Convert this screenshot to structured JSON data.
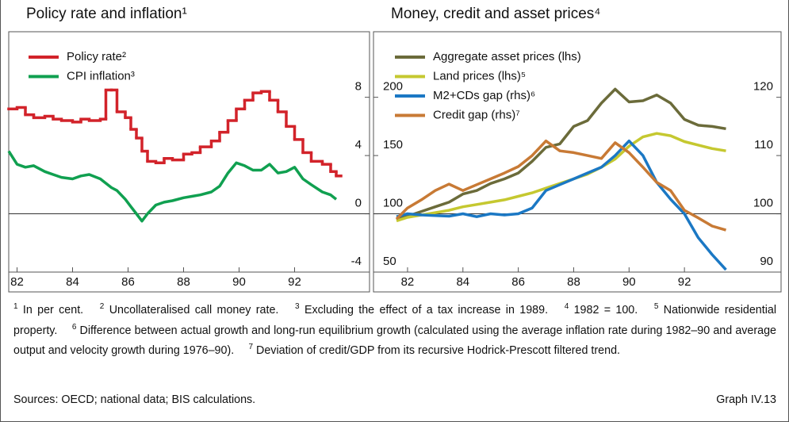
{
  "chart_data": [
    {
      "type": "line",
      "title": "Policy rate and inflation¹",
      "x": [
        1981.7,
        1982,
        1982.3,
        1982.6,
        1983,
        1983.3,
        1983.6,
        1984,
        1984.3,
        1984.6,
        1985,
        1985.2,
        1985.4,
        1985.6,
        1985.9,
        1986.1,
        1986.3,
        1986.5,
        1986.7,
        1987,
        1987.3,
        1987.6,
        1988,
        1988.3,
        1988.6,
        1989,
        1989.3,
        1989.6,
        1989.9,
        1990.2,
        1990.5,
        1990.8,
        1991.1,
        1991.4,
        1991.7,
        1992,
        1992.3,
        1992.6,
        1993,
        1993.3,
        1993.5
      ],
      "series": [
        {
          "name": "Policy rate²",
          "color": "#d2232a",
          "step": true,
          "values": [
            7.2,
            7.3,
            6.8,
            6.6,
            6.7,
            6.5,
            6.4,
            6.3,
            6.5,
            6.4,
            6.5,
            8.5,
            8.5,
            7.0,
            6.6,
            5.8,
            5.2,
            4.3,
            3.6,
            3.5,
            3.8,
            3.7,
            4.1,
            4.2,
            4.6,
            5.0,
            5.6,
            6.4,
            7.2,
            7.8,
            8.3,
            8.4,
            7.8,
            7.0,
            6.0,
            5.1,
            4.2,
            3.6,
            3.4,
            2.9,
            2.6
          ]
        },
        {
          "name": "CPI inflation³",
          "color": "#10a050",
          "values": [
            4.3,
            3.4,
            3.2,
            3.3,
            2.9,
            2.7,
            2.5,
            2.4,
            2.6,
            2.7,
            2.4,
            2.1,
            1.8,
            1.6,
            1.0,
            0.5,
            0.0,
            -0.5,
            0.0,
            0.6,
            0.8,
            0.9,
            1.1,
            1.2,
            1.3,
            1.5,
            1.9,
            2.8,
            3.5,
            3.3,
            3.0,
            3.0,
            3.4,
            2.8,
            2.9,
            3.2,
            2.4,
            2.0,
            1.5,
            1.3,
            1.0
          ]
        }
      ],
      "xlim": [
        1981.7,
        1994.7
      ],
      "xticks": [
        {
          "value": 1982,
          "label": "82"
        },
        {
          "value": 1984,
          "label": "84"
        },
        {
          "value": 1986,
          "label": "86"
        },
        {
          "value": 1988,
          "label": "88"
        },
        {
          "value": 1990,
          "label": "90"
        },
        {
          "value": 1992,
          "label": "92"
        }
      ],
      "ylim": [
        -4,
        12.5
      ],
      "yticks": [
        -4,
        0,
        4,
        8
      ],
      "yticks_side": "right",
      "reference_line": 0
    },
    {
      "type": "line",
      "title": "Money, credit and asset prices⁴",
      "x": [
        1981.6,
        1982,
        1982.5,
        1983,
        1983.5,
        1984,
        1984.5,
        1985,
        1985.5,
        1986,
        1986.5,
        1987,
        1987.5,
        1988,
        1988.5,
        1989,
        1989.5,
        1990,
        1990.5,
        1991,
        1991.5,
        1992,
        1992.5,
        1993,
        1993.5
      ],
      "series": [
        {
          "name": "Aggregate asset prices (lhs)",
          "color": "#6b6b3a",
          "values": [
            95,
            98,
            102,
            106,
            110,
            117,
            120,
            126,
            130,
            135,
            145,
            157,
            160,
            175,
            180,
            195,
            207,
            196,
            197,
            202,
            195,
            181,
            176,
            175,
            173
          ]
        },
        {
          "name": "Land prices (lhs)⁵",
          "color": "#c5c830",
          "values": [
            94,
            97,
            99,
            101,
            103,
            106,
            108,
            110,
            112,
            115,
            118,
            122,
            126,
            130,
            134,
            140,
            147,
            158,
            166,
            169,
            167,
            162,
            159,
            156,
            154
          ]
        },
        {
          "name": "M2+CDs gap (rhs)⁶",
          "color": "#1b78c4",
          "axis": "y2",
          "values": [
            99.5,
            100,
            99.8,
            99.7,
            99.6,
            100,
            99.5,
            100,
            99.8,
            100,
            101,
            104,
            105,
            106,
            107,
            108,
            110,
            112.5,
            110,
            105.4,
            102.5,
            100,
            95.9,
            93,
            90.4
          ]
        },
        {
          "name": "Credit gap (rhs)⁷",
          "color": "#c87a35",
          "axis": "y2",
          "values": [
            99.1,
            101,
            102.4,
            104,
            105.1,
            104,
            105,
            106,
            107,
            108.1,
            110,
            112.5,
            110.8,
            110.5,
            110,
            109.5,
            112.2,
            110.5,
            108,
            105.4,
            104,
            100.6,
            99.3,
            97.9,
            97.2
          ]
        }
      ],
      "xlim": [
        1980.77,
        1995.49
      ],
      "xticks": [
        {
          "value": 1982,
          "label": "82"
        },
        {
          "value": 1984,
          "label": "84"
        },
        {
          "value": 1986,
          "label": "86"
        },
        {
          "value": 1988,
          "label": "88"
        },
        {
          "value": 1990,
          "label": "90"
        },
        {
          "value": 1992,
          "label": "92"
        }
      ],
      "ylim": [
        50,
        256.25
      ],
      "yticks": [
        50,
        100,
        150,
        200
      ],
      "y2lim": [
        90,
        131.25
      ],
      "y2ticks": [
        90,
        100,
        110,
        120
      ],
      "yticks_side": "left",
      "reference_line": 100
    }
  ],
  "notes": [
    {
      "mark": "1",
      "text": "In per cent."
    },
    {
      "mark": "2",
      "text": "Uncollateralised call money rate."
    },
    {
      "mark": "3",
      "text": "Excluding the effect of a tax increase in 1989."
    },
    {
      "mark": "4",
      "text": "1982 = 100."
    },
    {
      "mark": "5",
      "text": "Nationwide residential property."
    },
    {
      "mark": "6",
      "text": "Difference between actual growth and long-run equilibrium growth (calculated using the average inflation rate during 1982–90 and average output and velocity growth during 1976–90)."
    },
    {
      "mark": "7",
      "text": "Deviation of credit/GDP from its recursive Hodrick-Prescott filtered trend."
    }
  ],
  "sources": "Sources: OECD; national data; BIS calculations.",
  "graph_label": "Graph IV.13"
}
